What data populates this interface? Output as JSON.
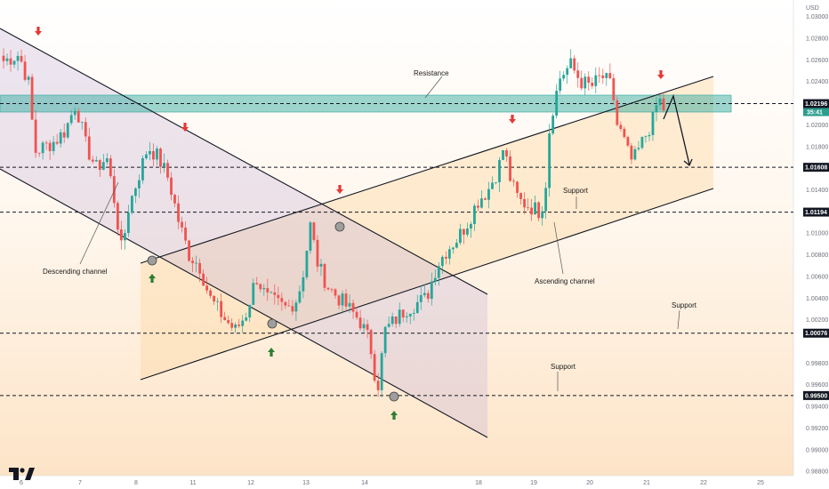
{
  "chart_data": {
    "type": "candlestick",
    "currency_label": "USD",
    "y_ticks": [
      "1.03000",
      "1.02800",
      "1.02600",
      "1.02400",
      "1.02196",
      "1.02000",
      "1.01800",
      "1.01600",
      "1.01400",
      "1.01194",
      "1.01000",
      "1.00800",
      "1.00600",
      "1.00400",
      "1.00200",
      "1.00076",
      "0.99800",
      "0.99600",
      "0.99400",
      "0.99200",
      "0.99000",
      "0.98800"
    ],
    "ylim": [
      0.9876,
      1.0312
    ],
    "x_ticks": [
      "6",
      "7",
      "8",
      "11",
      "12",
      "13",
      "14",
      "18",
      "19",
      "20",
      "21",
      "22",
      "25"
    ],
    "price_levels": [
      {
        "value": 1.02196,
        "label": "1.02196",
        "countdown": "35:41",
        "color": "#131722"
      },
      {
        "value": 1.01608,
        "label": "1.01608",
        "color": "#131722"
      },
      {
        "value": 1.01194,
        "label": "1.01194",
        "color": "#131722"
      },
      {
        "value": 1.00076,
        "label": "1.00076",
        "color": "#131722"
      },
      {
        "value": 0.995,
        "label": "0.99500",
        "color": "#131722"
      }
    ],
    "resistance_zone": [
      1.0212,
      1.0228
    ],
    "annotations": [
      "Resistance",
      "Descending channel",
      "Ascending channel",
      "Support",
      "Support",
      "Support"
    ],
    "colors": {
      "up": "#26a69a",
      "down": "#ef5350",
      "zone": "#26a69a",
      "channel_desc": "#c9b6d9",
      "channel_asc": "#fcd9a6",
      "arrow_up": "#2e7d32",
      "arrow_down": "#e53935"
    },
    "series_anchor_points": [
      [
        6.0,
        1.0259
      ],
      [
        6.3,
        1.0265
      ],
      [
        6.5,
        1.0236
      ],
      [
        6.6,
        1.0175
      ],
      [
        6.8,
        1.018
      ],
      [
        7.0,
        1.0185
      ],
      [
        7.2,
        1.0195
      ],
      [
        7.4,
        1.022
      ],
      [
        7.6,
        1.018
      ],
      [
        7.8,
        1.016
      ],
      [
        8.0,
        1.017
      ],
      [
        8.15,
        1.013
      ],
      [
        8.3,
        1.008
      ],
      [
        8.4,
        1.012
      ],
      [
        8.6,
        1.015
      ],
      [
        8.8,
        1.018
      ],
      [
        9.0,
        1.017
      ],
      [
        9.2,
        1.015
      ],
      [
        9.4,
        1.011
      ],
      [
        9.6,
        1.008
      ],
      [
        9.8,
        1.007
      ],
      [
        10.0,
        1.004
      ],
      [
        10.3,
        1.002
      ],
      [
        10.5,
        1.001
      ],
      [
        10.7,
        1.0025
      ],
      [
        10.9,
        1.006
      ],
      [
        11.1,
        1.004
      ],
      [
        11.3,
        1.0035
      ],
      [
        11.5,
        1.003
      ],
      [
        11.7,
        1.004
      ],
      [
        11.8,
        1.006
      ],
      [
        11.95,
        1.0107
      ],
      [
        12.1,
        1.007
      ],
      [
        12.3,
        1.005
      ],
      [
        12.5,
        1.004
      ],
      [
        12.7,
        1.003
      ],
      [
        12.9,
        1.002
      ],
      [
        13.1,
        1.0
      ],
      [
        13.25,
        0.9955
      ],
      [
        13.4,
        1.001
      ],
      [
        13.6,
        1.002
      ],
      [
        13.8,
        1.003
      ],
      [
        14.0,
        1.0035
      ],
      [
        14.2,
        1.004
      ],
      [
        14.4,
        1.007
      ],
      [
        14.6,
        1.0085
      ],
      [
        14.8,
        1.0095
      ],
      [
        15.0,
        1.011
      ],
      [
        15.2,
        1.013
      ],
      [
        15.4,
        1.014
      ],
      [
        15.6,
        1.016
      ],
      [
        15.7,
        1.018
      ],
      [
        15.85,
        1.0145
      ],
      [
        16.0,
        1.013
      ],
      [
        16.2,
        1.0125
      ],
      [
        16.4,
        1.012
      ],
      [
        16.5,
        1.0135
      ],
      [
        16.6,
        1.0205
      ],
      [
        16.8,
        1.0245
      ],
      [
        17.0,
        1.0255
      ],
      [
        17.2,
        1.024
      ],
      [
        17.4,
        1.0235
      ],
      [
        17.6,
        1.0245
      ],
      [
        17.8,
        1.0235
      ],
      [
        17.9,
        1.02
      ],
      [
        18.0,
        1.019
      ],
      [
        18.1,
        1.0175
      ],
      [
        18.2,
        1.0165
      ],
      [
        18.4,
        1.0185
      ],
      [
        18.6,
        1.0205
      ],
      [
        18.7,
        1.0225
      ],
      [
        18.8,
        1.0215
      ]
    ],
    "current_price": 1.02196
  }
}
